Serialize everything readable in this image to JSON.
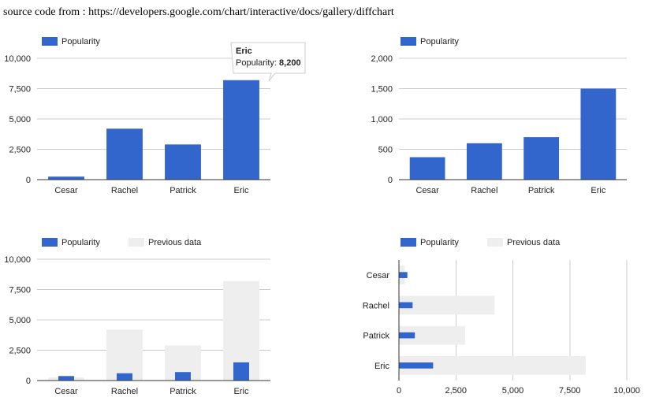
{
  "header": {
    "source_text": "source code from : https://developers.google.com/chart/interactive/docs/gallery/diffchart"
  },
  "colors": {
    "popularity": "#3366cc",
    "previous": "#eeeeee"
  },
  "chart_data": [
    {
      "type": "bar",
      "orientation": "vertical",
      "legend": [
        "Popularity"
      ],
      "categories": [
        "Cesar",
        "Rachel",
        "Patrick",
        "Eric"
      ],
      "series": [
        {
          "name": "Popularity",
          "values": [
            250,
            4200,
            2900,
            8200
          ]
        }
      ],
      "ylim": [
        0,
        10000
      ],
      "yticks": [
        "0",
        "2,500",
        "5,000",
        "7,500",
        "10,000"
      ],
      "tooltip": {
        "category": "Eric",
        "label": "Popularity:",
        "value": "8,200"
      }
    },
    {
      "type": "bar",
      "orientation": "vertical",
      "legend": [
        "Popularity"
      ],
      "categories": [
        "Cesar",
        "Rachel",
        "Patrick",
        "Eric"
      ],
      "series": [
        {
          "name": "Popularity",
          "values": [
            370,
            600,
            700,
            1500
          ]
        }
      ],
      "ylim": [
        0,
        2000
      ],
      "yticks": [
        "0",
        "500",
        "1,000",
        "1,500",
        "2,000"
      ]
    },
    {
      "type": "bar",
      "orientation": "vertical",
      "legend": [
        "Popularity",
        "Previous data"
      ],
      "categories": [
        "Cesar",
        "Rachel",
        "Patrick",
        "Eric"
      ],
      "series": [
        {
          "name": "Previous data",
          "values": [
            250,
            4200,
            2900,
            8200
          ]
        },
        {
          "name": "Popularity",
          "values": [
            370,
            600,
            700,
            1500
          ]
        }
      ],
      "ylim": [
        0,
        10000
      ],
      "yticks": [
        "0",
        "2,500",
        "5,000",
        "7,500",
        "10,000"
      ]
    },
    {
      "type": "bar",
      "orientation": "horizontal",
      "legend": [
        "Popularity",
        "Previous data"
      ],
      "categories": [
        "Cesar",
        "Rachel",
        "Patrick",
        "Eric"
      ],
      "series": [
        {
          "name": "Previous data",
          "values": [
            250,
            4200,
            2900,
            8200
          ]
        },
        {
          "name": "Popularity",
          "values": [
            370,
            600,
            700,
            1500
          ]
        }
      ],
      "xlim": [
        0,
        10000
      ],
      "xticks": [
        "0",
        "2,500",
        "5,000",
        "7,500",
        "10,000"
      ]
    }
  ]
}
